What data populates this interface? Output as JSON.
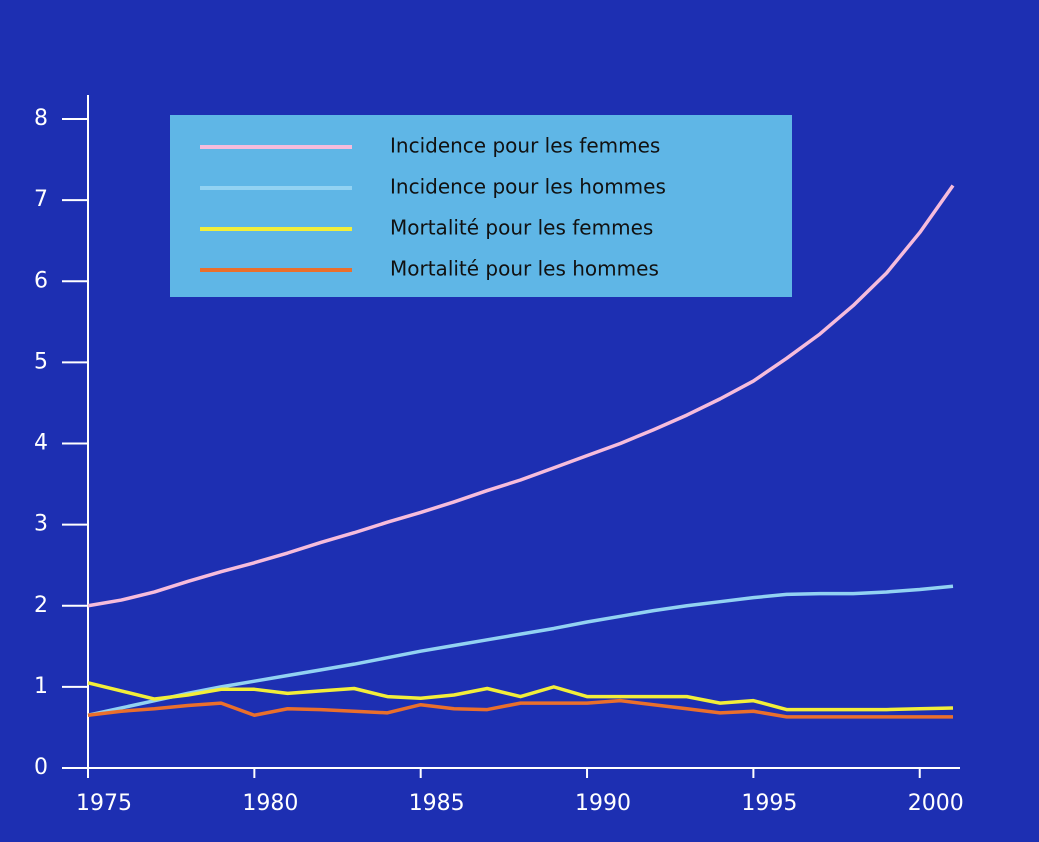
{
  "chart_data": {
    "type": "line",
    "x": [
      1975,
      1976,
      1977,
      1978,
      1979,
      1980,
      1981,
      1982,
      1983,
      1984,
      1985,
      1986,
      1987,
      1988,
      1989,
      1990,
      1991,
      1992,
      1993,
      1994,
      1995,
      1996,
      1997,
      1998,
      1999,
      2000,
      2001
    ],
    "series": [
      {
        "name": "Incidence pour les femmes",
        "color": "#f6bcdc",
        "values": [
          2.0,
          2.07,
          2.17,
          2.3,
          2.42,
          2.53,
          2.65,
          2.78,
          2.9,
          3.03,
          3.15,
          3.28,
          3.42,
          3.55,
          3.7,
          3.85,
          4.0,
          4.17,
          4.35,
          4.55,
          4.77,
          5.05,
          5.35,
          5.7,
          6.1,
          6.6,
          7.18
        ]
      },
      {
        "name": "Incidence pour les hommes",
        "color": "#92d2f2",
        "values": [
          0.65,
          0.74,
          0.83,
          0.92,
          1.0,
          1.07,
          1.14,
          1.21,
          1.28,
          1.36,
          1.44,
          1.51,
          1.58,
          1.65,
          1.72,
          1.8,
          1.87,
          1.94,
          2.0,
          2.05,
          2.1,
          2.14,
          2.15,
          2.15,
          2.17,
          2.2,
          2.24
        ]
      },
      {
        "name": "Mortalité pour les femmes",
        "color": "#f2ee3a",
        "values": [
          1.05,
          0.95,
          0.85,
          0.9,
          0.97,
          0.97,
          0.92,
          0.95,
          0.98,
          0.88,
          0.86,
          0.9,
          0.98,
          0.88,
          1.0,
          0.88,
          0.88,
          0.88,
          0.88,
          0.8,
          0.83,
          0.72,
          0.72,
          0.72,
          0.72,
          0.73,
          0.74
        ]
      },
      {
        "name": "Mortalité pour les hommes",
        "color": "#ea6f2c",
        "values": [
          0.65,
          0.7,
          0.73,
          0.77,
          0.8,
          0.65,
          0.73,
          0.72,
          0.7,
          0.68,
          0.78,
          0.73,
          0.72,
          0.8,
          0.8,
          0.8,
          0.83,
          0.78,
          0.73,
          0.68,
          0.7,
          0.63,
          0.63,
          0.63,
          0.63,
          0.63,
          0.63
        ]
      }
    ],
    "xlim": [
      1975,
      2001
    ],
    "xticks": [
      1975,
      1980,
      1985,
      1990,
      1995,
      2000
    ],
    "ylim": [
      0,
      8
    ],
    "yticks": [
      0,
      1,
      2,
      3,
      4,
      5,
      6,
      7,
      8
    ],
    "legend": "top"
  }
}
